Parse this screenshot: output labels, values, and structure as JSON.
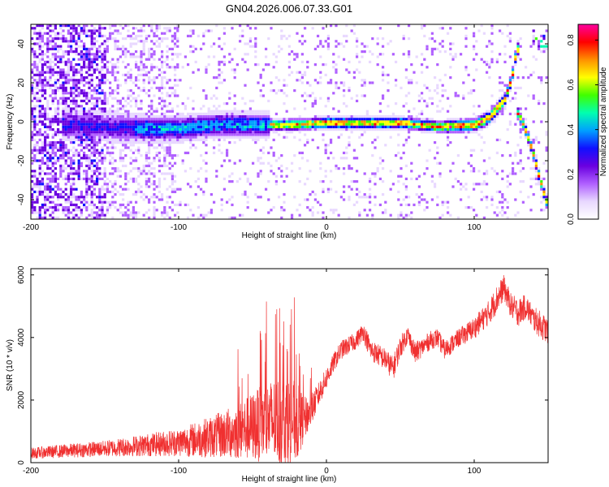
{
  "title": "GN04.2026.006.07.33.G01",
  "chart_data": [
    {
      "type": "heatmap",
      "xlabel": "Height of straight line (km)",
      "ylabel": "Frequency (Hz)",
      "xlim": [
        -200,
        150
      ],
      "ylim": [
        -50,
        50
      ],
      "xticks": [
        -200,
        -100,
        0,
        100
      ],
      "yticks": [
        -40,
        -20,
        0,
        20,
        40
      ],
      "colorbar": {
        "label": "Normalized spectral amplitude",
        "range": [
          0,
          0.87
        ],
        "ticks": [
          0.0,
          0.2,
          0.4,
          0.6,
          0.8
        ],
        "colormap": [
          "#ffffff",
          "#e8d8ff",
          "#b060ff",
          "#6a00e0",
          "#1010ff",
          "#00a0ff",
          "#00ffb0",
          "#40ff00",
          "#ffff00",
          "#ff9000",
          "#ff0000",
          "#ff00a0"
        ]
      },
      "ridge": {
        "x": [
          -175,
          -150,
          -125,
          -100,
          -75,
          -50,
          -25,
          0,
          25,
          50,
          75,
          100,
          110,
          120,
          125,
          128
        ],
        "y": [
          -1,
          -2,
          -3,
          -3,
          -1,
          -1,
          -1,
          0,
          0,
          0,
          -2,
          -1,
          3,
          12,
          24,
          38
        ]
      },
      "branch": {
        "x": [
          128,
          132,
          136,
          140,
          144,
          150
        ],
        "y": [
          6,
          0,
          -8,
          -18,
          -30,
          -45
        ]
      }
    },
    {
      "type": "line",
      "xlabel": "Height of straight line (km)",
      "ylabel": "SNR (10 * v/v)",
      "xlim": [
        -200,
        150
      ],
      "ylim": [
        0,
        6200
      ],
      "xticks": [
        -200,
        -100,
        0,
        100
      ],
      "yticks": [
        0,
        2000,
        4000,
        6000
      ],
      "color": "#f03030",
      "envelope": {
        "x": [
          -200,
          -175,
          -150,
          -125,
          -100,
          -75,
          -60,
          -50,
          -40,
          -30,
          -20,
          -15,
          -10,
          -5,
          0,
          5,
          10,
          20,
          25,
          30,
          40,
          45,
          50,
          55,
          60,
          65,
          70,
          75,
          80,
          90,
          100,
          110,
          115,
          120,
          125,
          130,
          135,
          140,
          145,
          150
        ],
        "mean": [
          300,
          380,
          450,
          550,
          650,
          850,
          1000,
          1150,
          1300,
          1350,
          1300,
          1400,
          1700,
          2200,
          2700,
          3200,
          3600,
          3900,
          4200,
          3600,
          3300,
          3000,
          3700,
          4100,
          3500,
          3700,
          3900,
          4000,
          3600,
          4000,
          4300,
          4800,
          5200,
          5600,
          5000,
          4800,
          5000,
          4600,
          4400,
          4200
        ],
        "amp": [
          180,
          220,
          260,
          350,
          450,
          700,
          900,
          1100,
          1300,
          1500,
          1300,
          700,
          500,
          400,
          350,
          300,
          300,
          280,
          300,
          350,
          350,
          400,
          350,
          300,
          350,
          300,
          300,
          300,
          300,
          300,
          350,
          400,
          450,
          400,
          400,
          450,
          400,
          400,
          450,
          400
        ]
      }
    }
  ]
}
